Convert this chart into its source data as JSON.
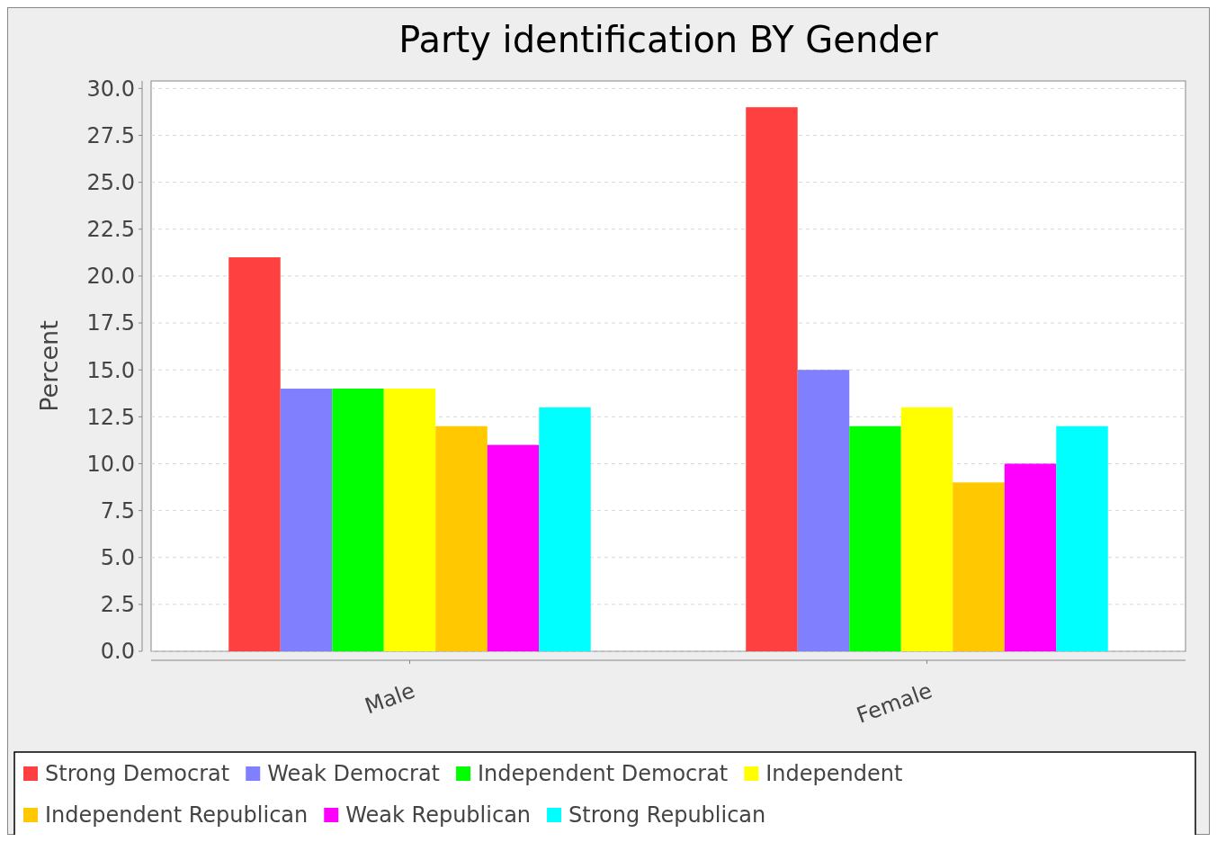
{
  "chart_data": {
    "type": "bar",
    "title": "Party identification BY Gender",
    "ylabel": "Percent",
    "categories": [
      "Male",
      "Female"
    ],
    "series": [
      {
        "name": "Strong Democrat",
        "color": "#ff4040",
        "values": [
          21,
          29
        ]
      },
      {
        "name": "Weak Democrat",
        "color": "#8080ff",
        "values": [
          14,
          15
        ]
      },
      {
        "name": "Independent Democrat",
        "color": "#00ff00",
        "values": [
          14,
          12
        ]
      },
      {
        "name": "Independent",
        "color": "#ffff00",
        "values": [
          14,
          13
        ]
      },
      {
        "name": "Independent Republican",
        "color": "#ffc800",
        "values": [
          12,
          9
        ]
      },
      {
        "name": "Weak Republican",
        "color": "#ff00ff",
        "values": [
          11,
          10
        ]
      },
      {
        "name": "Strong Republican",
        "color": "#00ffff",
        "values": [
          13,
          12
        ]
      }
    ],
    "ylim": [
      0,
      30.4
    ],
    "yticks": [
      {
        "value": 0,
        "label": "0.0"
      },
      {
        "value": 2.5,
        "label": "2.5"
      },
      {
        "value": 5,
        "label": "5.0"
      },
      {
        "value": 7.5,
        "label": "7.5"
      },
      {
        "value": 10,
        "label": "10.0"
      },
      {
        "value": 12.5,
        "label": "12.5"
      },
      {
        "value": 15,
        "label": "15.0"
      },
      {
        "value": 17.5,
        "label": "17.5"
      },
      {
        "value": 20,
        "label": "20.0"
      },
      {
        "value": 22.5,
        "label": "22.5"
      },
      {
        "value": 25,
        "label": "25.0"
      },
      {
        "value": 27.5,
        "label": "27.5"
      },
      {
        "value": 30,
        "label": "30.0"
      }
    ],
    "grid": "y",
    "legend": "bottom"
  }
}
